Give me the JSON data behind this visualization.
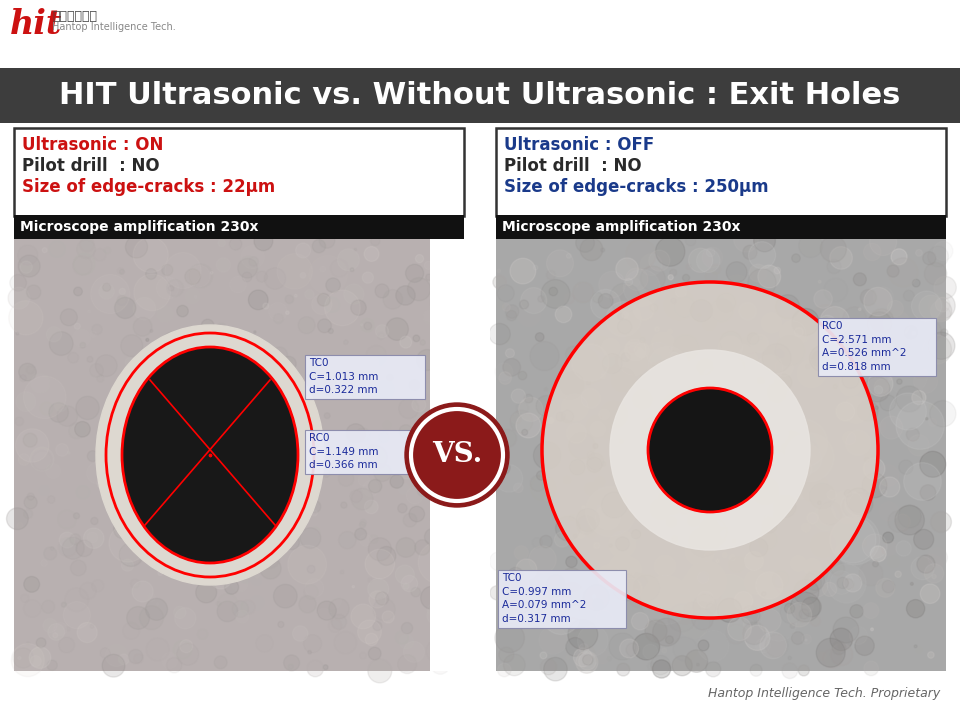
{
  "title": "HIT Ultrasonic vs. Without Ultrasonic : Exit Holes",
  "title_bg": "#3d3d3d",
  "title_color": "#ffffff",
  "bg_color": "#ffffff",
  "left_panel": {
    "line1_all_red": "Ultrasonic : ON",
    "line2": "Pilot drill  : NO",
    "line3_all_red": "Size of edge-cracks : 22μm",
    "highlight_color": "#cc1111",
    "text_color": "#2a2a2a",
    "micro_label": "Microscope amplification 230x",
    "micro_bg": "#111111",
    "micro_color": "#ffffff",
    "tc0_text": "TC0\nC=1.013 mm\nd=0.322 mm",
    "rc0_text": "RC0\nC=1.149 mm\nd=0.366 mm"
  },
  "right_panel": {
    "line1_all_blue": "Ultrasonic : OFF",
    "line2": "Pilot drill  : NO",
    "line3_all_blue": "Size of edge-cracks : 250μm",
    "highlight_color": "#1a3a8a",
    "text_color": "#2a2a2a",
    "micro_label": "Microscope amplification 230x",
    "micro_bg": "#111111",
    "micro_color": "#ffffff",
    "rc0_text": "RC0\nC=2.571 mm\nA=0.526 mm^2\nd=0.818 mm",
    "tc0_text": "TC0\nC=0.997 mm\nA=0.079 mm^2\nd=0.317 mm"
  },
  "vs_text": "VS.",
  "vs_bg": "#8B1A1A",
  "vs_color": "#ffffff",
  "footer": "Hantop Intelligence Tech. Proprietary",
  "footer_color": "#666666",
  "gap_color": "#ffffff",
  "annotation_bg": "#e8eaf6",
  "annotation_border": "#8888aa",
  "annotation_text_color": "#1a2a9a"
}
